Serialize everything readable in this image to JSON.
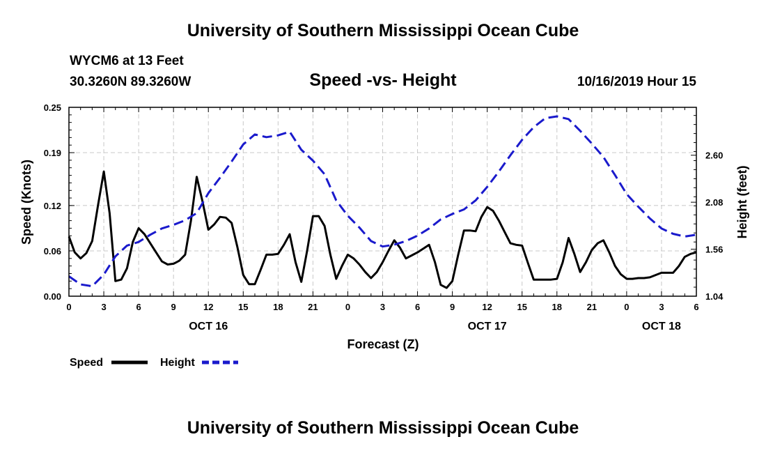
{
  "header": {
    "title": "University of Southern Mississippi Ocean Cube",
    "station": "WYCM6 at 13 Feet",
    "coordinates": "30.3260N 89.3260W",
    "subtitle": "Speed -vs- Height",
    "datetime": "10/16/2019 Hour 15"
  },
  "footer": {
    "title": "University of Southern Mississippi Ocean Cube"
  },
  "chart_data": {
    "type": "line",
    "xlabel": "Forecast (Z)",
    "ylabel": "Speed (Knots)",
    "y2label": "Height (feet)",
    "xlim": [
      0,
      54
    ],
    "ylim": [
      0,
      0.25
    ],
    "y2lim": [
      1.04,
      3.13
    ],
    "grid": true,
    "legend_position": "bottom-left",
    "colors": {
      "speed": "#000000",
      "height": "#1a1acc",
      "grid": "#c8c8c8"
    },
    "x_ticks": [
      0,
      3,
      6,
      9,
      12,
      15,
      18,
      21,
      24,
      27,
      30,
      33,
      36,
      39,
      42,
      45,
      48,
      51,
      54
    ],
    "x_tick_labels": [
      "0",
      "3",
      "6",
      "9",
      "12",
      "15",
      "18",
      "21",
      "0",
      "3",
      "6",
      "9",
      "12",
      "15",
      "18",
      "21",
      "0",
      "3",
      "6"
    ],
    "y_ticks": [
      0.0,
      0.06,
      0.12,
      0.19,
      0.25
    ],
    "y_tick_labels": [
      "0.00",
      "0.06",
      "0.12",
      "0.19",
      "0.25"
    ],
    "y2_ticks": [
      1.04,
      1.56,
      2.08,
      2.6
    ],
    "y2_tick_labels": [
      "1.04",
      "1.56",
      "2.08",
      "2.60"
    ],
    "date_labels": [
      {
        "x": 12,
        "label": "OCT 16"
      },
      {
        "x": 36,
        "label": "OCT 17"
      },
      {
        "x": 51,
        "label": "OCT 18"
      }
    ],
    "series": [
      {
        "name": "Speed",
        "axis": "left",
        "style": "solid",
        "x": [
          0,
          0.5,
          1,
          1.5,
          2,
          2.5,
          3,
          3.5,
          4,
          4.5,
          5,
          5.5,
          6,
          6.5,
          7,
          7.5,
          8,
          8.5,
          9,
          9.5,
          10,
          10.5,
          11,
          11.5,
          12,
          12.5,
          13,
          13.5,
          14,
          14.5,
          15,
          15.5,
          16,
          16.5,
          17,
          17.5,
          18,
          18.5,
          19,
          19.5,
          20,
          20.5,
          21,
          21.5,
          22,
          22.5,
          23,
          23.5,
          24,
          24.5,
          25,
          25.5,
          26,
          26.5,
          27,
          27.5,
          28,
          28.5,
          29,
          29.5,
          30,
          30.5,
          31,
          31.5,
          32,
          32.5,
          33,
          33.5,
          34,
          34.5,
          35,
          35.5,
          36,
          36.5,
          37,
          37.5,
          38,
          38.5,
          39,
          39.5,
          40,
          40.5,
          41,
          41.5,
          42,
          42.5,
          43,
          43.5,
          44,
          44.5,
          45,
          45.5,
          46,
          46.5,
          47,
          47.5,
          48,
          48.5,
          49,
          49.5,
          50,
          50.5,
          51,
          51.5,
          52,
          52.5,
          53,
          53.5,
          54
        ],
        "values": [
          0.079,
          0.058,
          0.05,
          0.057,
          0.073,
          0.12,
          0.165,
          0.11,
          0.02,
          0.022,
          0.037,
          0.072,
          0.09,
          0.082,
          0.07,
          0.058,
          0.046,
          0.042,
          0.043,
          0.047,
          0.055,
          0.1,
          0.158,
          0.125,
          0.088,
          0.095,
          0.105,
          0.104,
          0.097,
          0.065,
          0.028,
          0.016,
          0.016,
          0.035,
          0.055,
          0.055,
          0.056,
          0.068,
          0.082,
          0.045,
          0.019,
          0.06,
          0.106,
          0.106,
          0.093,
          0.055,
          0.023,
          0.04,
          0.055,
          0.05,
          0.042,
          0.032,
          0.024,
          0.032,
          0.045,
          0.06,
          0.074,
          0.064,
          0.05,
          0.054,
          0.058,
          0.063,
          0.068,
          0.045,
          0.015,
          0.011,
          0.02,
          0.055,
          0.087,
          0.087,
          0.086,
          0.105,
          0.118,
          0.113,
          0.1,
          0.085,
          0.07,
          0.068,
          0.067,
          0.044,
          0.022,
          0.022,
          0.022,
          0.022,
          0.023,
          0.045,
          0.077,
          0.056,
          0.032,
          0.045,
          0.061,
          0.07,
          0.074,
          0.058,
          0.04,
          0.029,
          0.023,
          0.023,
          0.024,
          0.024,
          0.025,
          0.028,
          0.031,
          0.031,
          0.031,
          0.04,
          0.052,
          0.056,
          0.058
        ]
      },
      {
        "name": "Height",
        "axis": "right",
        "style": "dashed",
        "x": [
          0,
          1,
          2,
          3,
          4,
          5,
          6,
          7,
          8,
          9,
          10,
          11,
          12,
          13,
          14,
          15,
          16,
          17,
          18,
          19,
          20,
          21,
          22,
          23,
          24,
          25,
          26,
          27,
          28,
          29,
          30,
          31,
          32,
          33,
          34,
          35,
          36,
          37,
          38,
          39,
          40,
          41,
          42,
          43,
          44,
          45,
          46,
          47,
          48,
          49,
          50,
          51,
          52,
          53,
          54
        ],
        "values": [
          1.26,
          1.17,
          1.15,
          1.28,
          1.48,
          1.6,
          1.64,
          1.72,
          1.79,
          1.83,
          1.88,
          1.96,
          2.18,
          2.35,
          2.53,
          2.72,
          2.83,
          2.8,
          2.82,
          2.86,
          2.66,
          2.54,
          2.39,
          2.1,
          1.93,
          1.8,
          1.65,
          1.59,
          1.61,
          1.65,
          1.71,
          1.79,
          1.89,
          1.95,
          2.0,
          2.1,
          2.25,
          2.42,
          2.6,
          2.77,
          2.91,
          3.01,
          3.03,
          3.0,
          2.87,
          2.73,
          2.58,
          2.38,
          2.17,
          2.03,
          1.9,
          1.79,
          1.73,
          1.7,
          1.72
        ]
      }
    ]
  }
}
